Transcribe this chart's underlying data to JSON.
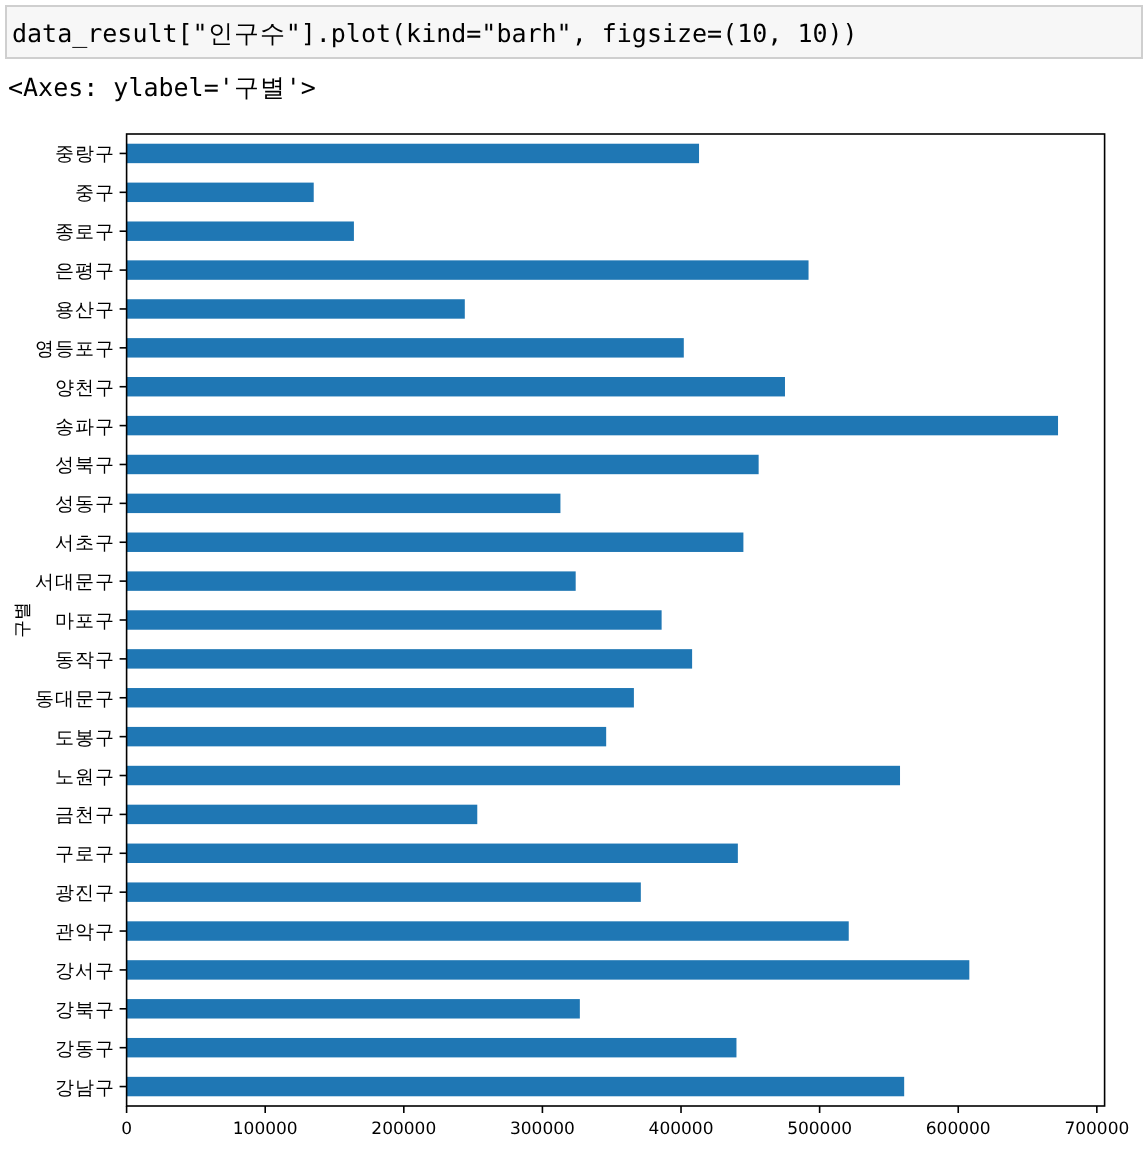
{
  "chart_data": {
    "type": "bar",
    "orientation": "horizontal",
    "title": "data_result[\"인구수\"].plot(kind=\"barh\", figsize=(10, 10))",
    "subtitle": "<Axes: ylabel='구별'>",
    "ylabel": "구별",
    "categories": [
      "중랑구",
      "중구",
      "종로구",
      "은평구",
      "용산구",
      "영등포구",
      "양천구",
      "송파구",
      "성북구",
      "성동구",
      "서초구",
      "서대문구",
      "마포구",
      "동작구",
      "동대문구",
      "도봉구",
      "노원구",
      "금천구",
      "구로구",
      "광진구",
      "관악구",
      "강서구",
      "강북구",
      "강동구",
      "강남구"
    ],
    "values": [
      413000,
      135000,
      164000,
      492000,
      244000,
      402000,
      475000,
      672000,
      456000,
      313000,
      445000,
      324000,
      386000,
      408000,
      366000,
      346000,
      558000,
      253000,
      441000,
      371000,
      521000,
      608000,
      327000,
      440000,
      561000
    ],
    "color": "#1f77b4",
    "xlim": [
      0,
      705600
    ],
    "xticks": [
      0,
      100000,
      200000,
      300000,
      400000,
      500000,
      600000,
      700000
    ]
  }
}
